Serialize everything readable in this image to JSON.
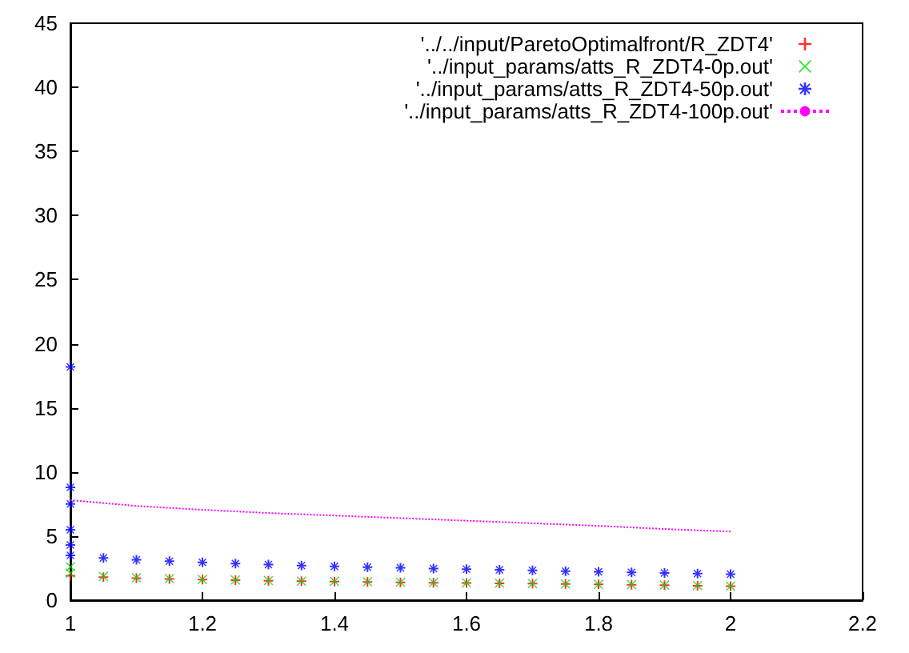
{
  "chart_data": {
    "type": "scatter",
    "xlim": [
      1,
      2.2
    ],
    "xticks": [
      1,
      1.2,
      1.4,
      1.6,
      1.8,
      2,
      2.2
    ],
    "ylim": [
      0,
      45
    ],
    "yticks": [
      0,
      5,
      10,
      15,
      20,
      25,
      30,
      35,
      40,
      45
    ],
    "grid": false,
    "legend": "top right",
    "series": [
      {
        "name": "'../../input/ParetoOptimalfront/R_ZDT4'",
        "color": "#ff0000",
        "marker": "cross",
        "x": [
          1,
          1.05,
          1.1,
          1.15,
          1.2,
          1.25,
          1.3,
          1.35,
          1.4,
          1.45,
          1.5,
          1.55,
          1.6,
          1.65,
          1.7,
          1.75,
          1.8,
          1.85,
          1.9,
          1.95,
          2
        ],
        "values": [
          1.9,
          1.8,
          1.72,
          1.66,
          1.6,
          1.56,
          1.52,
          1.48,
          1.45,
          1.42,
          1.39,
          1.36,
          1.34,
          1.31,
          1.29,
          1.26,
          1.23,
          1.2,
          1.17,
          1.13,
          1.1
        ]
      },
      {
        "name": "'../input_params/atts_R_ZDT4-0p.out'",
        "color": "#00dd00",
        "marker": "x",
        "x": [
          1,
          1,
          1.05,
          1.1,
          1.15,
          1.2,
          1.25,
          1.3,
          1.35,
          1.4,
          1.45,
          1.5,
          1.55,
          1.6,
          1.65,
          1.7,
          1.75,
          1.8,
          1.85,
          1.9,
          1.95,
          2
        ],
        "values": [
          2.6,
          2.1,
          1.85,
          1.75,
          1.68,
          1.62,
          1.57,
          1.53,
          1.49,
          1.46,
          1.43,
          1.4,
          1.37,
          1.35,
          1.32,
          1.3,
          1.27,
          1.24,
          1.21,
          1.18,
          1.14,
          1.1
        ]
      },
      {
        "name": "'../input_params/atts_R_ZDT4-50p.out'",
        "color": "#0000ff",
        "marker": "star",
        "x": [
          1,
          1,
          1,
          1,
          1,
          1,
          1.05,
          1.1,
          1.15,
          1.2,
          1.25,
          1.3,
          1.35,
          1.4,
          1.45,
          1.5,
          1.55,
          1.6,
          1.65,
          1.7,
          1.75,
          1.8,
          1.85,
          1.9,
          1.95,
          2
        ],
        "values": [
          18.2,
          8.8,
          7.5,
          5.5,
          4.3,
          3.5,
          3.3,
          3.15,
          3.05,
          2.95,
          2.85,
          2.78,
          2.7,
          2.63,
          2.57,
          2.52,
          2.47,
          2.42,
          2.37,
          2.32,
          2.27,
          2.22,
          2.17,
          2.12,
          2.08,
          2.03
        ]
      },
      {
        "name": "'../input_params/atts_R_ZDT4-100p.out'",
        "type": "line",
        "color": "#ff00ff",
        "marker": "none",
        "line_style": "dotted",
        "x": [
          1,
          1.1,
          1.2,
          1.3,
          1.4,
          1.5,
          1.6,
          1.7,
          1.8,
          1.9,
          2
        ],
        "values": [
          7.8,
          7.35,
          7.05,
          6.8,
          6.6,
          6.4,
          6.2,
          6.0,
          5.8,
          5.55,
          5.35
        ]
      }
    ]
  }
}
